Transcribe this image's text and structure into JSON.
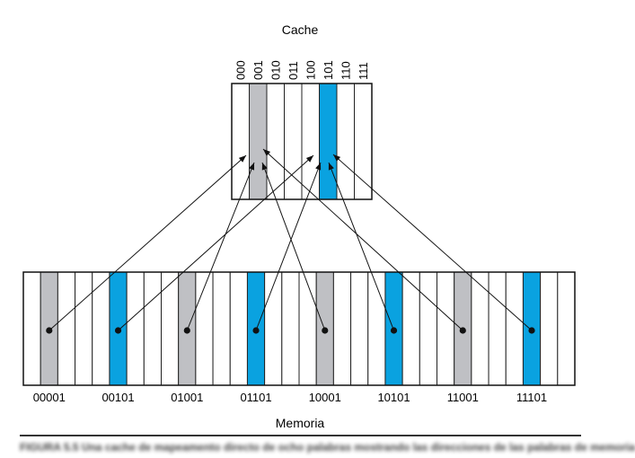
{
  "cache": {
    "title": "Cache",
    "indices": [
      "000",
      "001",
      "010",
      "011",
      "100",
      "101",
      "110",
      "111"
    ],
    "highlighted": [
      {
        "index": "001",
        "color": "gray"
      },
      {
        "index": "101",
        "color": "blue"
      }
    ]
  },
  "memory": {
    "title": "Memoria",
    "address_labels": [
      "00001",
      "00101",
      "01001",
      "01101",
      "10001",
      "10101",
      "11001",
      "11101"
    ],
    "mapping": [
      {
        "address": "00001",
        "cache_index": "001",
        "color": "gray"
      },
      {
        "address": "00101",
        "cache_index": "101",
        "color": "blue"
      },
      {
        "address": "01001",
        "cache_index": "001",
        "color": "gray"
      },
      {
        "address": "01101",
        "cache_index": "101",
        "color": "blue"
      },
      {
        "address": "10001",
        "cache_index": "001",
        "color": "gray"
      },
      {
        "address": "10101",
        "cache_index": "101",
        "color": "blue"
      },
      {
        "address": "11001",
        "cache_index": "001",
        "color": "gray"
      },
      {
        "address": "11101",
        "cache_index": "101",
        "color": "blue"
      }
    ]
  },
  "caption": {
    "text": "FIGURA 5.5 Una cache de mapeamento directo de ocho palabras mostrando las direcciones de las palabras de memoria"
  },
  "colors": {
    "gray_block": "#bfc0c4",
    "blue_block": "#0aa2e0",
    "line": "#111111",
    "divider": "#333333"
  }
}
